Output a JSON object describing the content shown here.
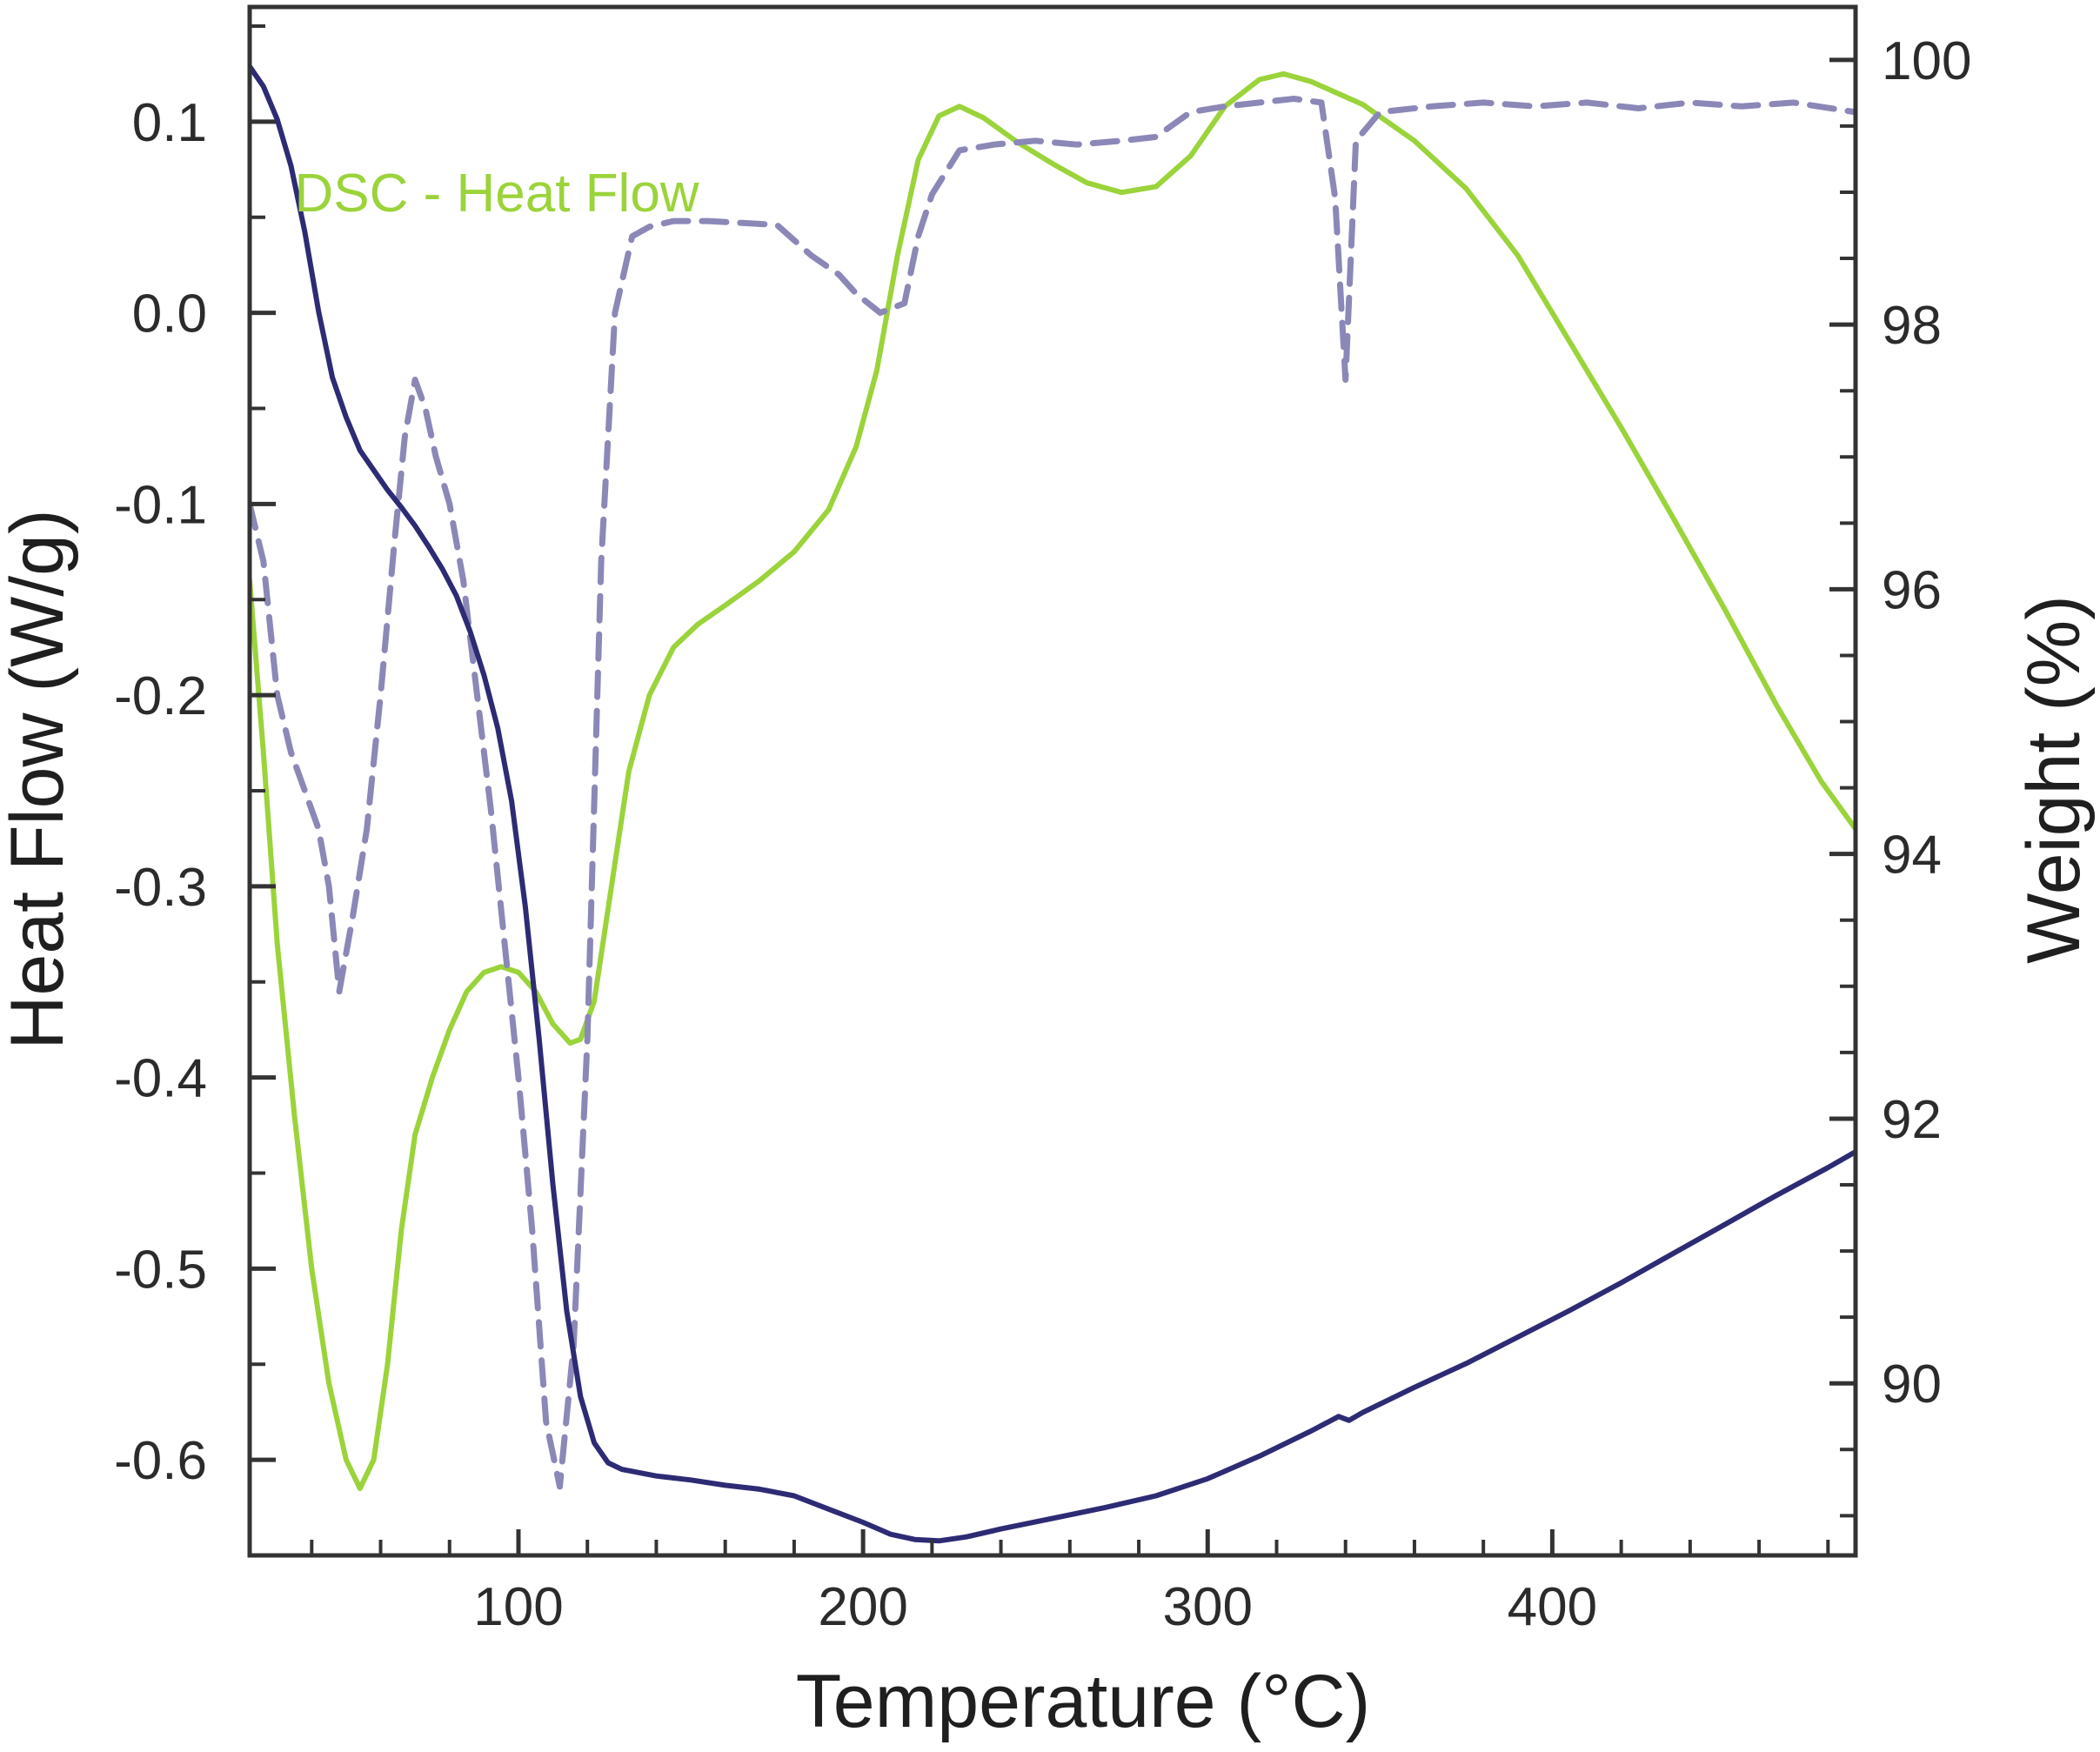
{
  "chart_data": {
    "type": "line",
    "xlabel": "Temperature (°C)",
    "ylabel_left": "Heat Flow (W/g)",
    "ylabel_right": "Weight (%)",
    "xlim": [
      22,
      488
    ],
    "ylim_left": [
      -0.65,
      0.16
    ],
    "ylim_right": [
      88.7,
      100.4
    ],
    "x_ticks": [
      100,
      200,
      300,
      400
    ],
    "x_minor_step": 20,
    "y_left_ticks": [
      0.1,
      0.0,
      -0.1,
      -0.2,
      -0.3,
      -0.4,
      -0.5,
      -0.6
    ],
    "y_left_tick_labels": [
      "0.1",
      "0.0",
      "-0.1",
      "-0.2",
      "-0.3",
      "-0.4",
      "-0.5",
      "-0.6"
    ],
    "y_left_minor_step": 0.05,
    "y_right_ticks": [
      90,
      92,
      94,
      96,
      98,
      100
    ],
    "y_right_minor_step": 0.5,
    "grid": false,
    "annotation": {
      "text": "DSC - Heat Flow",
      "x": 35,
      "y": 0.063,
      "color": "#9bd33b"
    },
    "series": [
      {
        "axis": "left",
        "color": "#9bd33b",
        "style": "solid",
        "points": [
          [
            22,
            -0.14
          ],
          [
            26,
            -0.23
          ],
          [
            30,
            -0.33
          ],
          [
            35,
            -0.42
          ],
          [
            40,
            -0.5
          ],
          [
            45,
            -0.56
          ],
          [
            50,
            -0.6
          ],
          [
            54,
            -0.615
          ],
          [
            58,
            -0.6
          ],
          [
            62,
            -0.55
          ],
          [
            66,
            -0.48
          ],
          [
            70,
            -0.43
          ],
          [
            75,
            -0.4
          ],
          [
            80,
            -0.375
          ],
          [
            85,
            -0.355
          ],
          [
            90,
            -0.345
          ],
          [
            95,
            -0.342
          ],
          [
            100,
            -0.345
          ],
          [
            105,
            -0.355
          ],
          [
            110,
            -0.372
          ],
          [
            115,
            -0.382
          ],
          [
            118,
            -0.38
          ],
          [
            122,
            -0.36
          ],
          [
            127,
            -0.3
          ],
          [
            132,
            -0.24
          ],
          [
            138,
            -0.2
          ],
          [
            145,
            -0.175
          ],
          [
            152,
            -0.163
          ],
          [
            160,
            -0.153
          ],
          [
            170,
            -0.14
          ],
          [
            180,
            -0.125
          ],
          [
            190,
            -0.103
          ],
          [
            198,
            -0.07
          ],
          [
            204,
            -0.03
          ],
          [
            210,
            0.03
          ],
          [
            216,
            0.08
          ],
          [
            222,
            0.103
          ],
          [
            228,
            0.108
          ],
          [
            235,
            0.102
          ],
          [
            245,
            0.089
          ],
          [
            255,
            0.078
          ],
          [
            265,
            0.068
          ],
          [
            275,
            0.063
          ],
          [
            285,
            0.066
          ],
          [
            295,
            0.082
          ],
          [
            305,
            0.108
          ],
          [
            315,
            0.122
          ],
          [
            322,
            0.125
          ],
          [
            330,
            0.121
          ],
          [
            345,
            0.109
          ],
          [
            360,
            0.09
          ],
          [
            375,
            0.065
          ],
          [
            390,
            0.03
          ],
          [
            405,
            -0.015
          ],
          [
            420,
            -0.06
          ],
          [
            435,
            -0.107
          ],
          [
            450,
            -0.155
          ],
          [
            465,
            -0.205
          ],
          [
            478,
            -0.245
          ],
          [
            488,
            -0.27
          ]
        ]
      },
      {
        "axis": "left",
        "color": "#8b88b8",
        "style": "dashed",
        "points": [
          [
            22,
            -0.1
          ],
          [
            26,
            -0.13
          ],
          [
            30,
            -0.2
          ],
          [
            34,
            -0.23
          ],
          [
            38,
            -0.25
          ],
          [
            42,
            -0.27
          ],
          [
            45,
            -0.3
          ],
          [
            48,
            -0.355
          ],
          [
            52,
            -0.315
          ],
          [
            56,
            -0.27
          ],
          [
            60,
            -0.2
          ],
          [
            64,
            -0.12
          ],
          [
            67,
            -0.065
          ],
          [
            70,
            -0.035
          ],
          [
            73,
            -0.05
          ],
          [
            76,
            -0.075
          ],
          [
            80,
            -0.1
          ],
          [
            84,
            -0.14
          ],
          [
            88,
            -0.2
          ],
          [
            92,
            -0.26
          ],
          [
            96,
            -0.33
          ],
          [
            100,
            -0.4
          ],
          [
            104,
            -0.48
          ],
          [
            108,
            -0.58
          ],
          [
            112,
            -0.614
          ],
          [
            116,
            -0.54
          ],
          [
            120,
            -0.38
          ],
          [
            124,
            -0.13
          ],
          [
            128,
            0.0
          ],
          [
            133,
            0.04
          ],
          [
            138,
            0.045
          ],
          [
            145,
            0.048
          ],
          [
            155,
            0.048
          ],
          [
            165,
            0.047
          ],
          [
            175,
            0.046
          ],
          [
            185,
            0.03
          ],
          [
            193,
            0.02
          ],
          [
            198,
            0.01
          ],
          [
            205,
            0.0
          ],
          [
            212,
            0.005
          ],
          [
            216,
            0.04
          ],
          [
            220,
            0.062
          ],
          [
            228,
            0.085
          ],
          [
            238,
            0.088
          ],
          [
            250,
            0.09
          ],
          [
            262,
            0.088
          ],
          [
            275,
            0.09
          ],
          [
            285,
            0.092
          ],
          [
            295,
            0.105
          ],
          [
            305,
            0.108
          ],
          [
            315,
            0.11
          ],
          [
            325,
            0.112
          ],
          [
            333,
            0.11
          ],
          [
            337,
            0.06
          ],
          [
            340,
            -0.035
          ],
          [
            343,
            0.09
          ],
          [
            350,
            0.105
          ],
          [
            365,
            0.108
          ],
          [
            380,
            0.11
          ],
          [
            395,
            0.108
          ],
          [
            410,
            0.11
          ],
          [
            425,
            0.107
          ],
          [
            440,
            0.11
          ],
          [
            455,
            0.108
          ],
          [
            470,
            0.11
          ],
          [
            488,
            0.105
          ]
        ]
      },
      {
        "axis": "right",
        "color": "#2e2b75",
        "style": "solid",
        "points": [
          [
            22,
            99.95
          ],
          [
            26,
            99.8
          ],
          [
            30,
            99.55
          ],
          [
            34,
            99.2
          ],
          [
            38,
            98.7
          ],
          [
            42,
            98.1
          ],
          [
            46,
            97.6
          ],
          [
            50,
            97.3
          ],
          [
            54,
            97.05
          ],
          [
            58,
            96.9
          ],
          [
            62,
            96.75
          ],
          [
            66,
            96.62
          ],
          [
            70,
            96.48
          ],
          [
            74,
            96.32
          ],
          [
            78,
            96.15
          ],
          [
            82,
            95.95
          ],
          [
            86,
            95.68
          ],
          [
            90,
            95.35
          ],
          [
            94,
            94.95
          ],
          [
            98,
            94.4
          ],
          [
            102,
            93.6
          ],
          [
            106,
            92.6
          ],
          [
            110,
            91.5
          ],
          [
            114,
            90.55
          ],
          [
            118,
            89.9
          ],
          [
            122,
            89.55
          ],
          [
            126,
            89.4
          ],
          [
            130,
            89.35
          ],
          [
            140,
            89.3
          ],
          [
            150,
            89.27
          ],
          [
            160,
            89.23
          ],
          [
            170,
            89.2
          ],
          [
            180,
            89.15
          ],
          [
            190,
            89.05
          ],
          [
            200,
            88.95
          ],
          [
            208,
            88.86
          ],
          [
            215,
            88.82
          ],
          [
            222,
            88.81
          ],
          [
            230,
            88.84
          ],
          [
            240,
            88.9
          ],
          [
            255,
            88.98
          ],
          [
            270,
            89.06
          ],
          [
            285,
            89.15
          ],
          [
            300,
            89.28
          ],
          [
            315,
            89.45
          ],
          [
            330,
            89.64
          ],
          [
            338,
            89.75
          ],
          [
            341,
            89.72
          ],
          [
            345,
            89.78
          ],
          [
            360,
            89.97
          ],
          [
            375,
            90.15
          ],
          [
            390,
            90.35
          ],
          [
            405,
            90.55
          ],
          [
            420,
            90.76
          ],
          [
            435,
            90.98
          ],
          [
            450,
            91.2
          ],
          [
            465,
            91.42
          ],
          [
            480,
            91.63
          ],
          [
            488,
            91.75
          ]
        ]
      }
    ]
  }
}
